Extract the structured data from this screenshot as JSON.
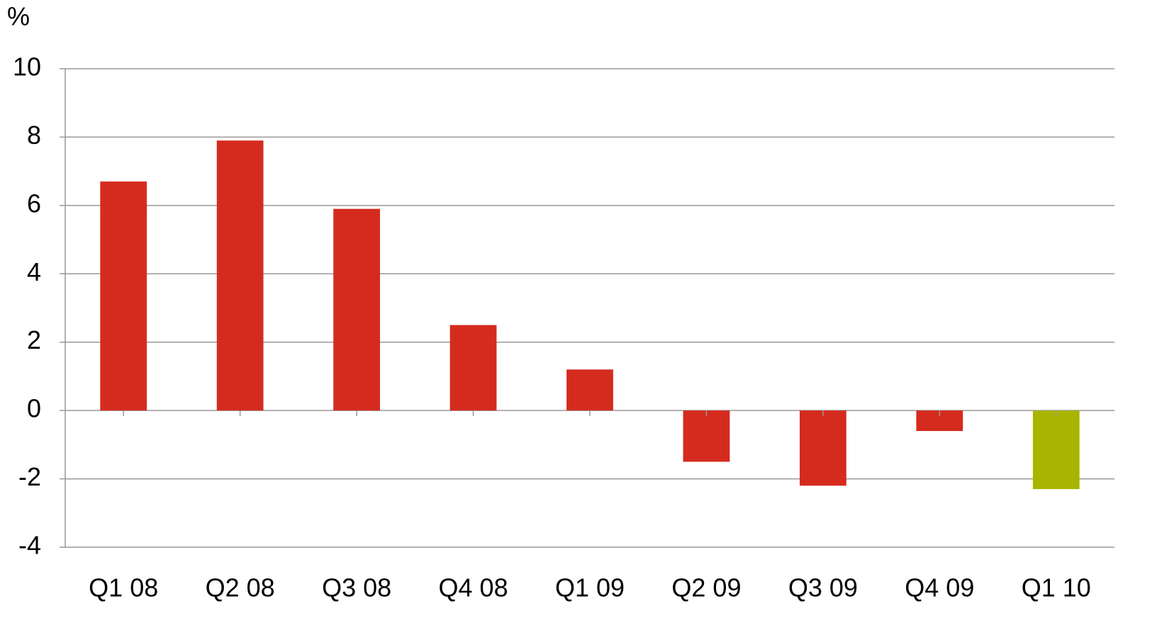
{
  "chart_data": {
    "type": "bar",
    "y_label": "%",
    "categories": [
      "Q1 08",
      "Q2 08",
      "Q3 08",
      "Q4 08",
      "Q1 09",
      "Q2 09",
      "Q3 09",
      "Q4 09",
      "Q1 10"
    ],
    "values": [
      6.7,
      7.9,
      5.9,
      2.5,
      1.2,
      -1.5,
      -2.2,
      -0.6,
      -2.3
    ],
    "colors": [
      "#d52b1e",
      "#d52b1e",
      "#d52b1e",
      "#d52b1e",
      "#d52b1e",
      "#d52b1e",
      "#d52b1e",
      "#d52b1e",
      "#a8b400"
    ],
    "ylim": [
      -4,
      10
    ],
    "yticks": [
      -4,
      -2,
      0,
      2,
      4,
      6,
      8,
      10
    ],
    "grid": true
  }
}
